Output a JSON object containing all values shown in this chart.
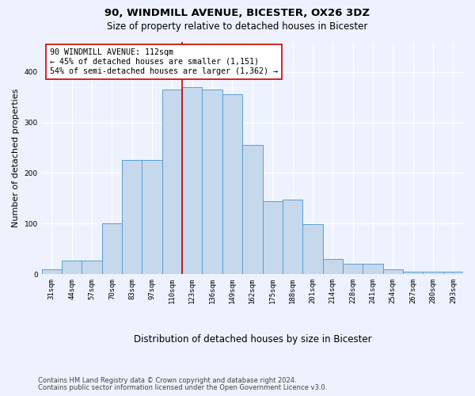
{
  "title1": "90, WINDMILL AVENUE, BICESTER, OX26 3DZ",
  "title2": "Size of property relative to detached houses in Bicester",
  "xlabel": "Distribution of detached houses by size in Bicester",
  "ylabel": "Number of detached properties",
  "categories": [
    "31sqm",
    "44sqm",
    "57sqm",
    "70sqm",
    "83sqm",
    "97sqm",
    "110sqm",
    "123sqm",
    "136sqm",
    "149sqm",
    "162sqm",
    "175sqm",
    "188sqm",
    "201sqm",
    "214sqm",
    "228sqm",
    "241sqm",
    "254sqm",
    "267sqm",
    "280sqm",
    "293sqm"
  ],
  "values": [
    10,
    27,
    27,
    100,
    226,
    226,
    365,
    370,
    365,
    355,
    255,
    144,
    148,
    98,
    30,
    20,
    20,
    10,
    5,
    5,
    4
  ],
  "bar_color": "#c5d8ec",
  "bar_edge_color": "#5a9fd4",
  "vline_x": 6.5,
  "vline_color": "#cc0000",
  "annotation_text": "90 WINDMILL AVENUE: 112sqm\n← 45% of detached houses are smaller (1,151)\n54% of semi-detached houses are larger (1,362) →",
  "annotation_box_color": "#ffffff",
  "annotation_border_color": "#cc0000",
  "footnote1": "Contains HM Land Registry data © Crown copyright and database right 2024.",
  "footnote2": "Contains public sector information licensed under the Open Government Licence v3.0.",
  "ylim": [
    0,
    460
  ],
  "background_color": "#eef2ff",
  "grid_color": "#ffffff",
  "title1_fontsize": 9.5,
  "title2_fontsize": 8.5,
  "ylabel_fontsize": 8,
  "xlabel_fontsize": 8.5,
  "tick_fontsize": 6.5,
  "annot_fontsize": 7.2,
  "footnote_fontsize": 6.0
}
